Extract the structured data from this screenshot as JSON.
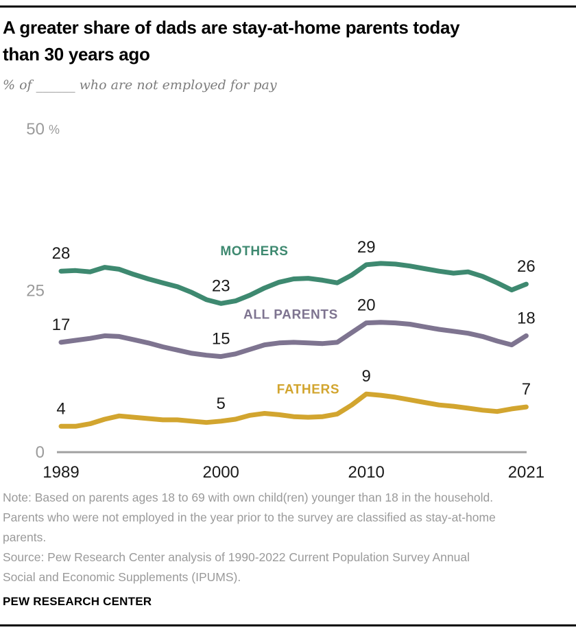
{
  "header": {
    "title_lines": [
      "A greater share of dads are stay-at-home parents today",
      "than 30 years ago"
    ],
    "subtitle": "% of ______ who are not employed for pay"
  },
  "chart_data": {
    "type": "line",
    "title": "A greater share of dads are stay-at-home parents today than 30 years ago",
    "subtitle": "% of ______ who are not employed for pay",
    "x": [
      1989,
      1990,
      1991,
      1992,
      1993,
      1994,
      1995,
      1996,
      1997,
      1998,
      1999,
      2000,
      2001,
      2002,
      2003,
      2004,
      2005,
      2006,
      2007,
      2008,
      2009,
      2010,
      2011,
      2012,
      2013,
      2014,
      2015,
      2016,
      2017,
      2018,
      2019,
      2020,
      2021
    ],
    "ylim": [
      0,
      50
    ],
    "grid": false,
    "axis_color": "#a1a1a1",
    "y_ticks": [
      {
        "value": 50,
        "label": "50",
        "suffix": "%"
      },
      {
        "value": 25,
        "label": "25",
        "suffix": ""
      },
      {
        "value": 0,
        "label": "0",
        "suffix": ""
      }
    ],
    "x_ticks": [
      {
        "value": 1989,
        "label": "1989"
      },
      {
        "value": 2000,
        "label": "2000"
      },
      {
        "value": 2010,
        "label": "2010"
      },
      {
        "value": 2021,
        "label": "2021"
      }
    ],
    "series": [
      {
        "name": "MOTHERS",
        "color": "#3e8970",
        "values": [
          28,
          28.1,
          27.9,
          28.6,
          28.3,
          27.5,
          26.8,
          26.2,
          25.6,
          24.7,
          23.6,
          23,
          23.4,
          24.3,
          25.4,
          26.3,
          26.8,
          26.9,
          26.6,
          26.2,
          27.4,
          29,
          29.2,
          29.1,
          28.8,
          28.4,
          28,
          27.7,
          27.9,
          27.2,
          26.2,
          25.1,
          26
        ],
        "labeled_points": [
          {
            "year": 1989,
            "label": "28"
          },
          {
            "year": 2000,
            "label": "23"
          },
          {
            "year": 2010,
            "label": "29"
          },
          {
            "year": 2021,
            "label": "26"
          }
        ],
        "name_label_pos": {
          "year": 2002.3,
          "value": 31.2
        }
      },
      {
        "name": "ALL PARENTS",
        "color": "#7e7490",
        "values": [
          17,
          17.3,
          17.6,
          18,
          17.9,
          17.4,
          16.9,
          16.3,
          15.8,
          15.3,
          15,
          14.8,
          15.2,
          15.9,
          16.6,
          16.9,
          17,
          16.9,
          16.8,
          17,
          18.5,
          20,
          20.1,
          20,
          19.8,
          19.4,
          19,
          18.7,
          18.4,
          17.9,
          17.2,
          16.6,
          18
        ],
        "labeled_points": [
          {
            "year": 1989,
            "label": "17"
          },
          {
            "year": 2000,
            "label": "15"
          },
          {
            "year": 2010,
            "label": "20"
          },
          {
            "year": 2021,
            "label": "18"
          }
        ],
        "name_label_pos": {
          "year": 2004.8,
          "value": 21.4
        }
      },
      {
        "name": "FATHERS",
        "color": "#d2a52f",
        "values": [
          4,
          4,
          4.4,
          5.1,
          5.6,
          5.4,
          5.2,
          5,
          5,
          4.8,
          4.6,
          4.8,
          5.1,
          5.7,
          6,
          5.8,
          5.5,
          5.4,
          5.5,
          5.9,
          7.3,
          9,
          8.8,
          8.5,
          8.1,
          7.7,
          7.3,
          7.1,
          6.8,
          6.5,
          6.3,
          6.7,
          7
        ],
        "labeled_points": [
          {
            "year": 1989,
            "label": "4"
          },
          {
            "year": 2000,
            "label": "5"
          },
          {
            "year": 2010,
            "label": "9"
          },
          {
            "year": 2021,
            "label": "7"
          }
        ],
        "name_label_pos": {
          "year": 2006.0,
          "value": 9.8
        }
      }
    ]
  },
  "footer": {
    "note_lines": [
      "Note: Based on parents ages 18 to 69 with own child(ren) younger than 18 in the household.",
      "Parents who were not employed in the year prior to the survey are classified as stay-at-home",
      "parents."
    ],
    "source_lines": [
      "Source: Pew Research Center analysis of 1990-2022 Current Population Survey Annual",
      "Social and Economic Supplements (IPUMS)."
    ],
    "brand": "PEW RESEARCH CENTER"
  }
}
